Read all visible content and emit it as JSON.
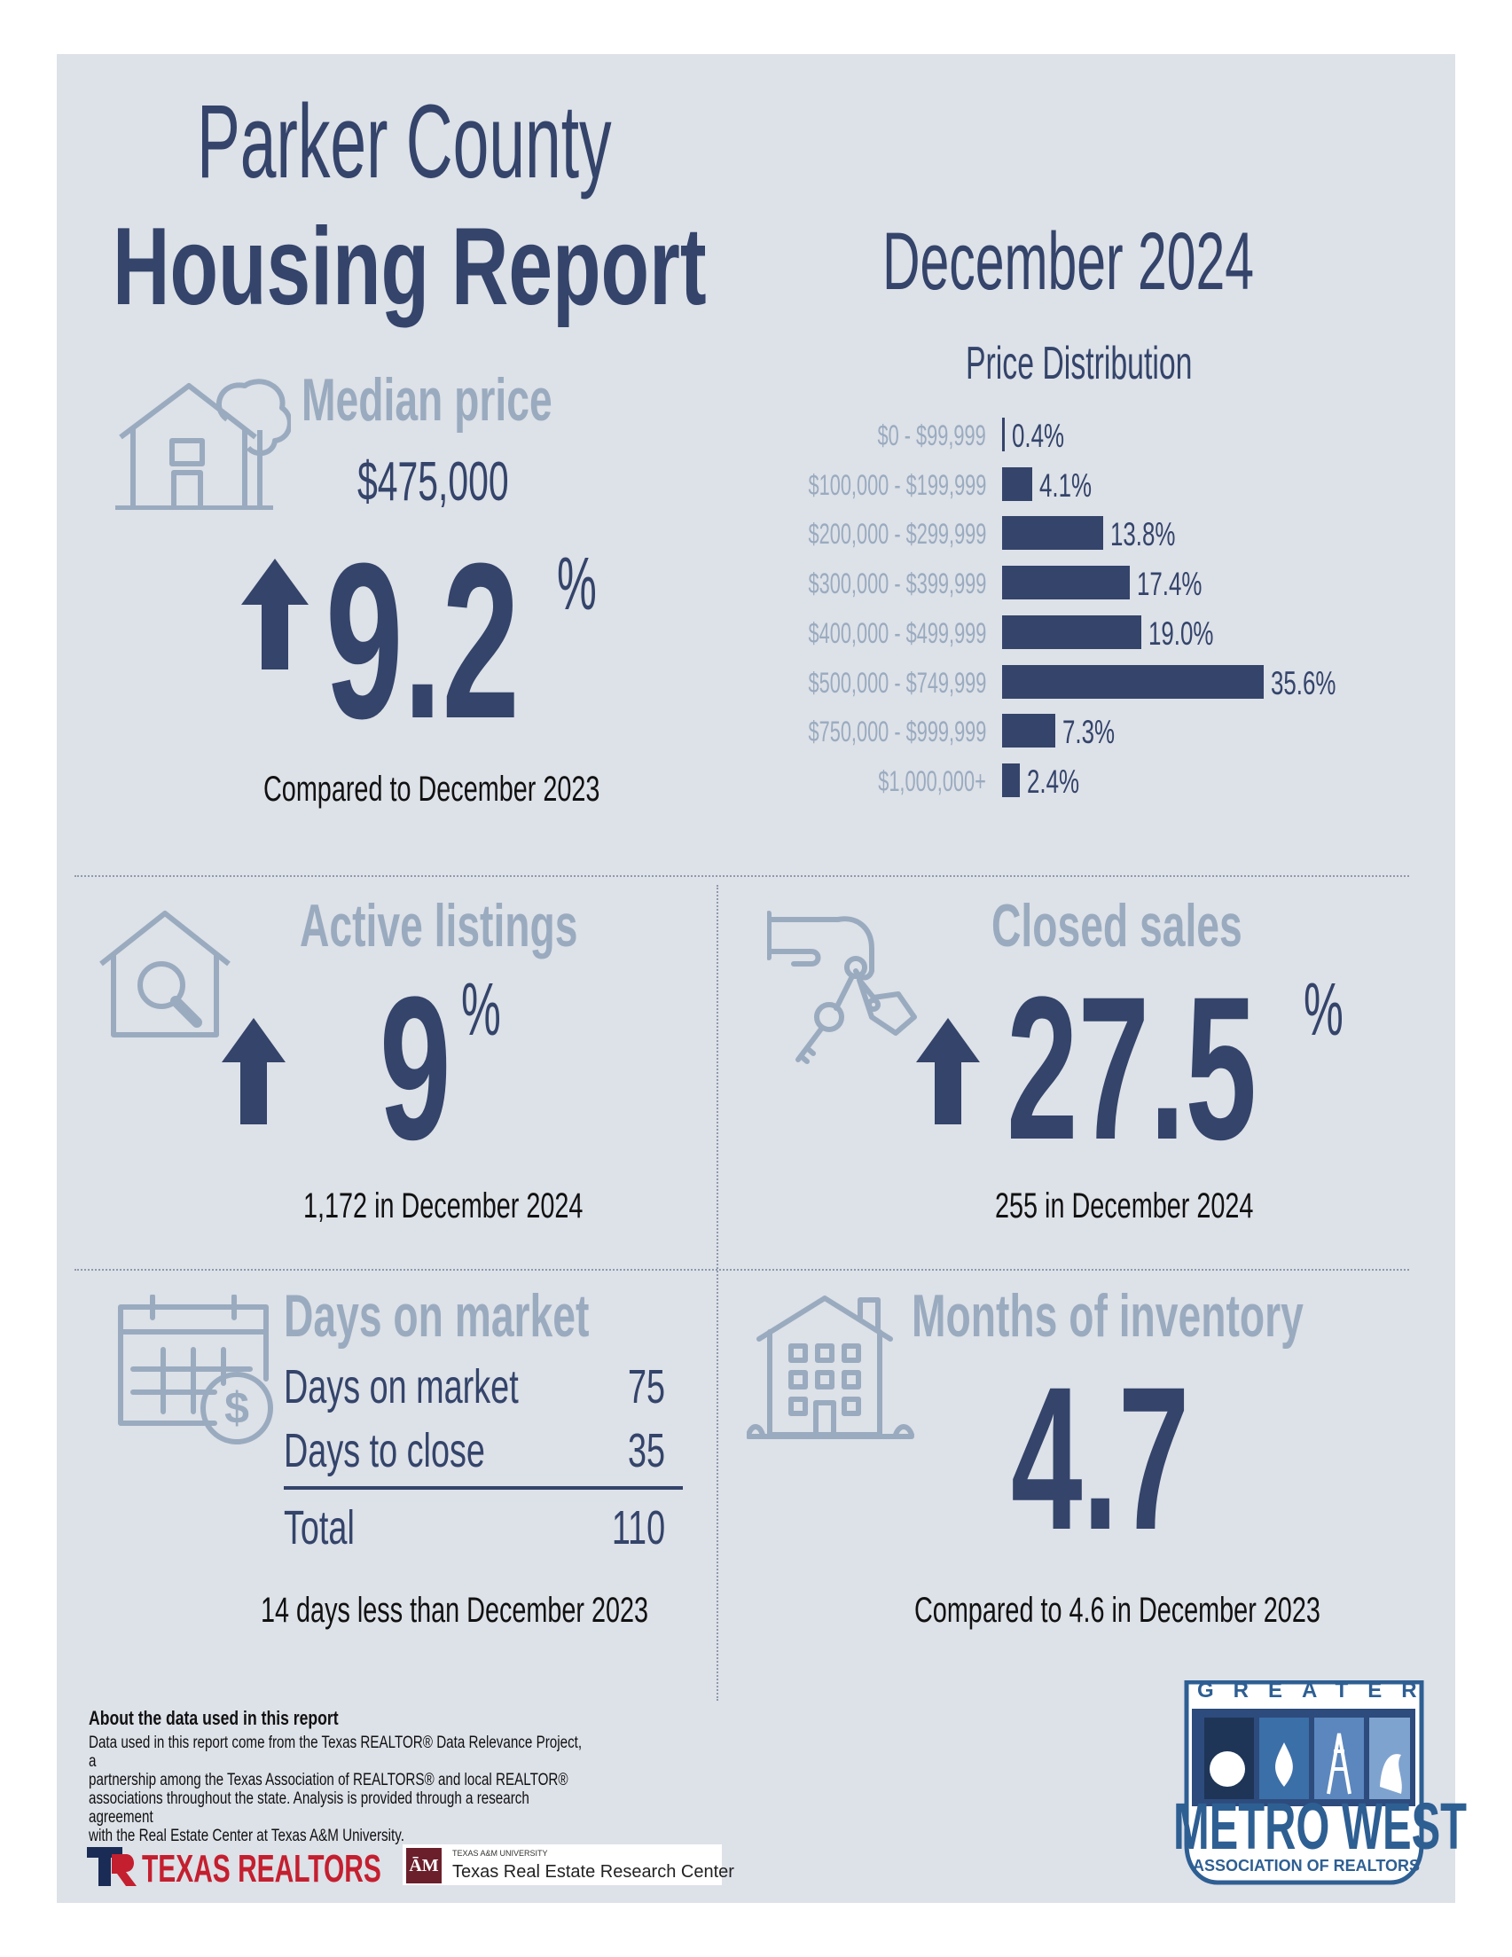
{
  "header": {
    "title_line1": "Parker County",
    "title_line2": "Housing Report",
    "month": "December 2024"
  },
  "median_price": {
    "label": "Median price",
    "value": "$475,000",
    "change": "9.2",
    "unit": "%",
    "direction": "up",
    "caption": "Compared to December 2023",
    "icon": "house-tree-icon"
  },
  "price_distribution": {
    "title": "Price Distribution"
  },
  "chart_data": {
    "type": "bar",
    "orientation": "horizontal",
    "title": "Price Distribution",
    "categories": [
      "$0 - $99,999",
      "$100,000 - $199,999",
      "$200,000 - $299,999",
      "$300,000 - $399,999",
      "$400,000 - $499,999",
      "$500,000 - $749,999",
      "$750,000 - $999,999",
      "$1,000,000+"
    ],
    "values": [
      0.4,
      4.1,
      13.8,
      17.4,
      19.0,
      35.6,
      7.3,
      2.4
    ],
    "labels": [
      "0.4%",
      "4.1%",
      "13.8%",
      "17.4%",
      "19.0%",
      "35.6%",
      "7.3%",
      "2.4%"
    ],
    "color": "#34446a"
  },
  "active_listings": {
    "label": "Active listings",
    "change": "9",
    "unit": "%",
    "direction": "up",
    "caption": "1,172 in December 2024",
    "icon": "house-magnifier-icon"
  },
  "closed_sales": {
    "label": "Closed sales",
    "change": "27.5",
    "unit": "%",
    "direction": "up",
    "caption": "255 in December 2024",
    "icon": "hand-keys-icon"
  },
  "days_on_market": {
    "label": "Days on market",
    "rows": [
      {
        "label": "Days on market",
        "value": "75"
      },
      {
        "label": "Days to close",
        "value": "35"
      }
    ],
    "total_label": "Total",
    "total_value": "110",
    "caption": "14 days less than December 2023",
    "icon": "calendar-dollar-icon"
  },
  "months_inventory": {
    "label": "Months of inventory",
    "value": "4.7",
    "caption": "Compared to 4.6 in December 2023",
    "icon": "building-icon"
  },
  "about": {
    "heading": "About the data used in this report",
    "lines": [
      "Data used in this report come from the Texas REALTOR® Data Relevance Project, a",
      "partnership among the Texas Association of REALTORS® and local REALTOR®",
      "associations throughout the state. Analysis is provided through a research agreement",
      "with the Real Estate Center at Texas A&M University."
    ]
  },
  "footer": {
    "texas_realtors": "TEXAS REALTORS",
    "tamu_small": "TEXAS A&M UNIVERSITY",
    "tamu_main": "Texas Real Estate Research Center",
    "metro_top": "GREATER",
    "metro_main": "METRO WEST",
    "metro_sub": "ASSOCIATION OF REALTORS"
  },
  "colors": {
    "navy": "#34446a",
    "steel": "#9aabbf",
    "panel": "#dde1e8",
    "texas_red": "#c41f2f"
  }
}
